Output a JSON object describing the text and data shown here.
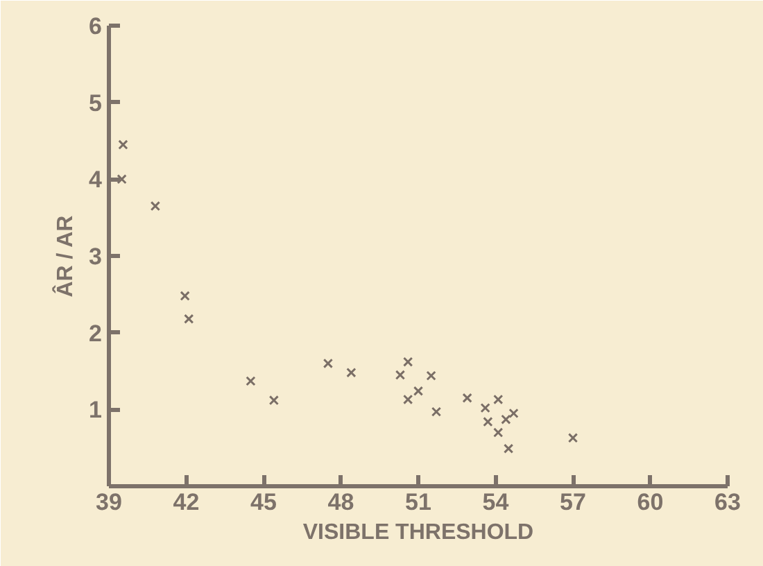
{
  "chart_data": {
    "type": "scatter",
    "xlabel": "VISIBLE THRESHOLD",
    "ylabel": "ÂR / AR",
    "x": [
      39.55,
      39.5,
      40.8,
      41.95,
      42.1,
      44.5,
      45.4,
      47.5,
      48.4,
      50.3,
      50.6,
      50.6,
      51.0,
      51.5,
      51.7,
      52.9,
      53.6,
      53.7,
      54.1,
      54.1,
      54.4,
      54.7,
      54.5,
      57.0
    ],
    "values": [
      4.45,
      4.0,
      3.65,
      2.48,
      2.18,
      1.37,
      1.12,
      1.6,
      1.48,
      1.45,
      1.62,
      1.13,
      1.24,
      1.44,
      0.97,
      1.15,
      1.02,
      0.84,
      1.13,
      0.7,
      0.87,
      0.95,
      0.49,
      0.63
    ],
    "color": "#7a6e66",
    "marker": "cross",
    "xlim": [
      39,
      63
    ],
    "xticks": [
      39,
      42,
      45,
      48,
      51,
      54,
      57,
      60,
      63
    ],
    "ylim": [
      0,
      6
    ],
    "yticks": [
      1,
      2,
      3,
      4,
      5,
      6
    ],
    "grid": false
  }
}
